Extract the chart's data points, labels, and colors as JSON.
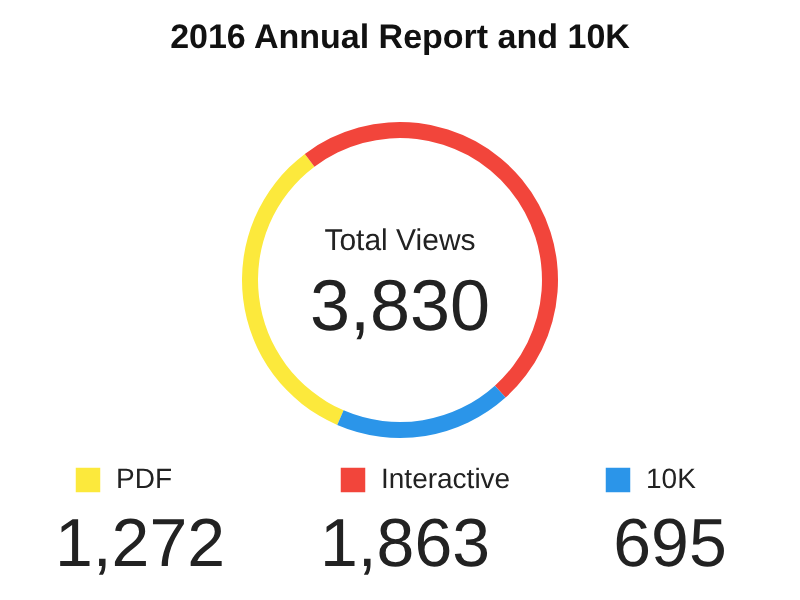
{
  "chart_data": {
    "type": "donut",
    "title": "2016 Annual Report and 10K",
    "categories": [
      "PDF",
      "Interactive",
      "10K"
    ],
    "values": [
      1272,
      1863,
      695
    ],
    "colors": [
      "#fce93c",
      "#f2453b",
      "#2b95e9"
    ],
    "annotations": [
      "Total Views",
      "3,830"
    ],
    "value_labels": [
      "1,272",
      "1,863",
      "695"
    ],
    "legend": "bottom"
  }
}
